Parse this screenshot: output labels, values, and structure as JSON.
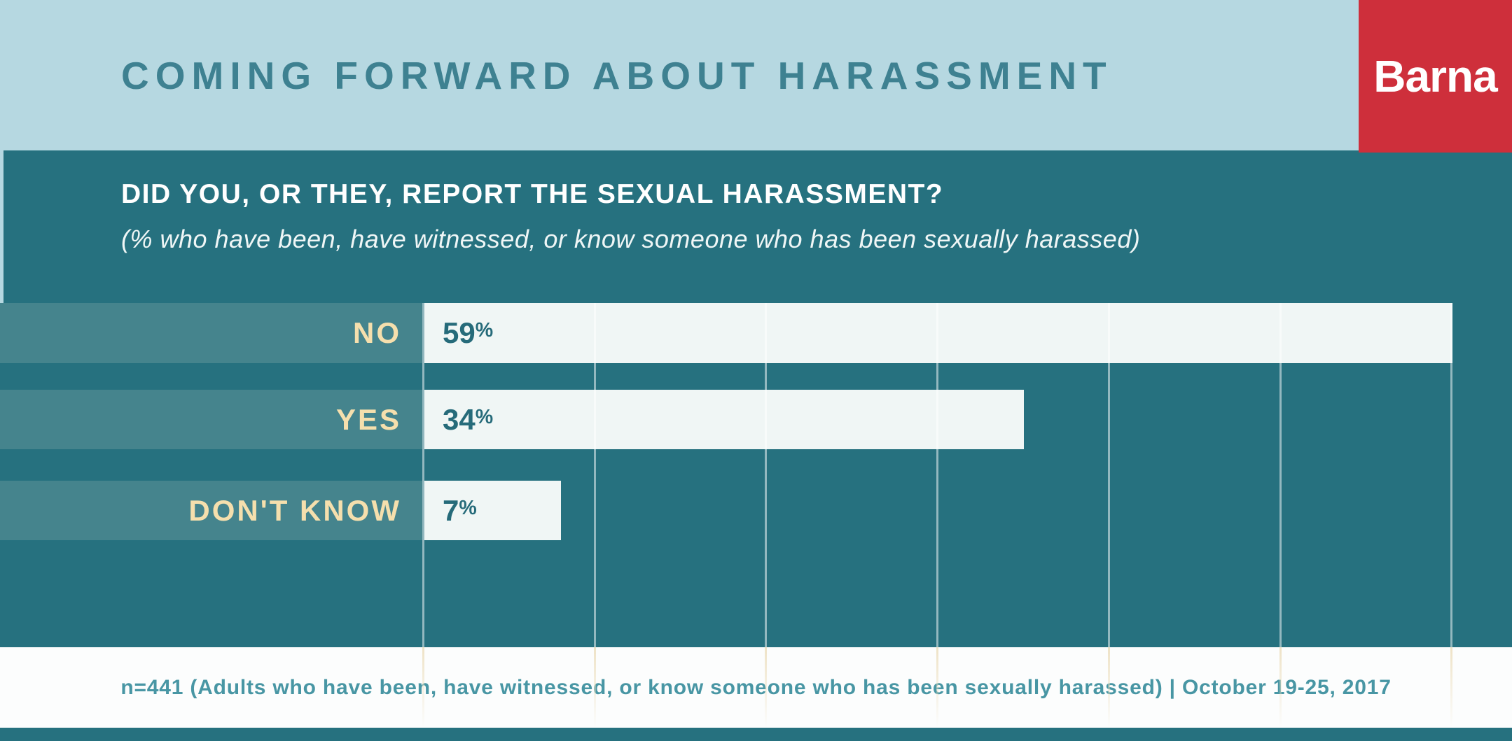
{
  "header": {
    "title": "COMING FORWARD ABOUT HARASSMENT",
    "logo_text": "Barna"
  },
  "question": {
    "title": "DID YOU, OR THEY, REPORT THE SEXUAL HARASSMENT?",
    "subtitle": "(% who have been, have witnessed, or know someone who has been sexually harassed)"
  },
  "chart_data": {
    "type": "bar",
    "orientation": "horizontal",
    "title": "DID YOU, OR THEY, REPORT THE SEXUAL HARASSMENT?",
    "subtitle": "(% who have been, have witnessed, or know someone who has been sexually harassed)",
    "categories": [
      "NO",
      "YES",
      "DON'T KNOW"
    ],
    "values": [
      59,
      34,
      7
    ],
    "unit": "%",
    "value_labels": [
      "59%",
      "34%",
      "7%"
    ],
    "xlim": [
      0,
      60
    ],
    "grid_step_percent": 10,
    "gridline_count": 7,
    "grid_on": true,
    "legend": "none",
    "bar_color": "#f0f6f5",
    "band_color": "#45848d",
    "background_color": "#26717f",
    "label_color": "#f5dfad",
    "value_color": "#266b7a"
  },
  "footer": {
    "note": "n=441 (Adults who have been, have witnessed, or know someone who has been sexually harassed) | October 19-25, 2017"
  },
  "colors": {
    "header_bg": "#b6d8e1",
    "header_title": "#3e8191",
    "logo_bg": "#ce2f3b",
    "logo_text": "#ffffff",
    "panel_bg": "#26717f",
    "band_bg": "#45848d",
    "bar_bg": "#f0f6f5",
    "value_text": "#266b7a",
    "label_text": "#f5dfad",
    "footer_bg": "#fcfdfd",
    "footer_text": "#4896a4"
  }
}
